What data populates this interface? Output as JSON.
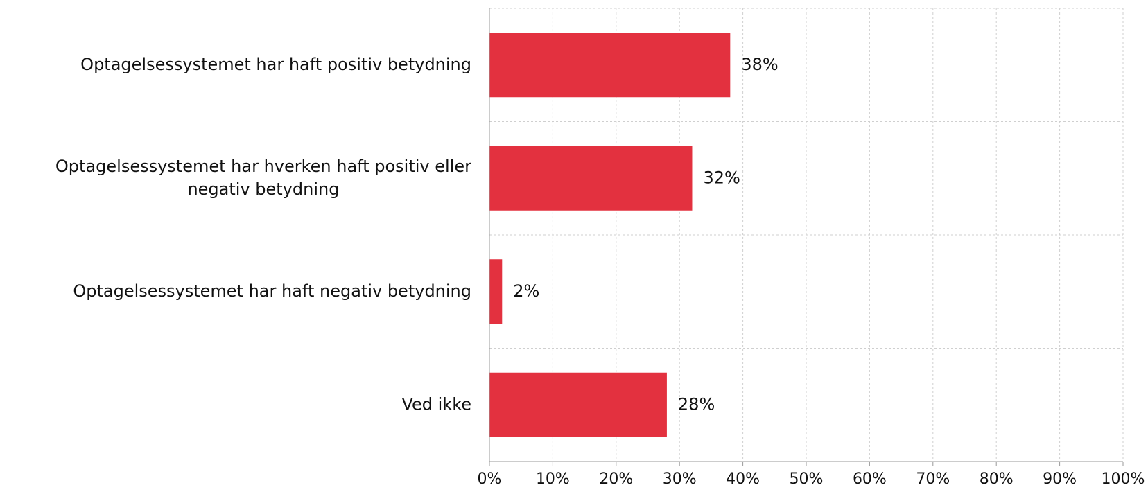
{
  "chart_data": {
    "type": "bar",
    "orientation": "horizontal",
    "categories": [
      "Optagelsessystemet har haft positiv betydning",
      "Optagelsessystemet har hverken haft positiv eller negativ betydning",
      "Optagelsessystemet har haft negativ betydning",
      "Ved ikke"
    ],
    "category_label_lines": [
      [
        "Optagelsessystemet har haft positiv betydning"
      ],
      [
        "Optagelsessystemet har hverken haft positiv eller",
        "negativ betydning"
      ],
      [
        "Optagelsessystemet har haft negativ betydning"
      ],
      [
        "Ved ikke"
      ]
    ],
    "values": [
      38,
      32,
      2,
      28
    ],
    "value_labels": [
      "38%",
      "32%",
      "2%",
      "28%"
    ],
    "xlim": [
      0,
      100
    ],
    "x_ticks": [
      0,
      10,
      20,
      30,
      40,
      50,
      60,
      70,
      80,
      90,
      100
    ],
    "x_tick_labels": [
      "0%",
      "10%",
      "20%",
      "30%",
      "40%",
      "50%",
      "60%",
      "70%",
      "80%",
      "90%",
      "100%"
    ],
    "grid": true,
    "bar_color": "#e3313f",
    "title": "",
    "xlabel": "",
    "ylabel": ""
  }
}
